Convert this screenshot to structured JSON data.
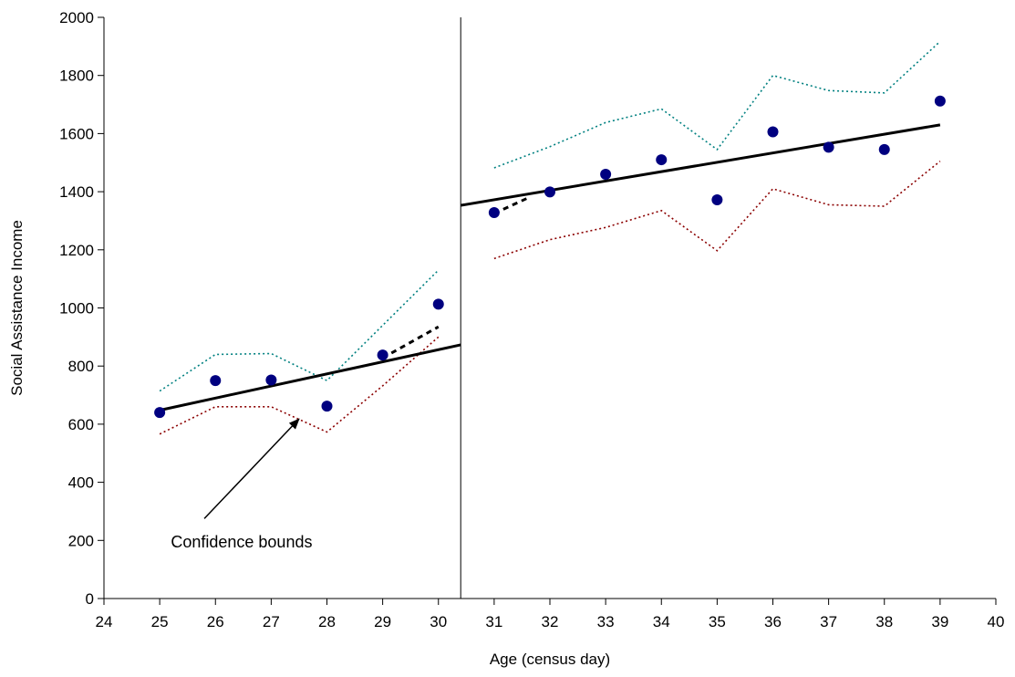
{
  "chart_data": {
    "type": "scatter",
    "xlabel": "Age (census day)",
    "ylabel": "Social Assistance Income",
    "xlim": [
      24,
      40
    ],
    "ylim": [
      0,
      2000
    ],
    "xticks": [
      24,
      25,
      26,
      27,
      28,
      29,
      30,
      31,
      32,
      33,
      34,
      35,
      36,
      37,
      38,
      39,
      40
    ],
    "yticks": [
      0,
      200,
      400,
      600,
      800,
      1000,
      1200,
      1400,
      1600,
      1800,
      2000
    ],
    "grid": false,
    "cutoff_x": 30.4,
    "points": {
      "color": "#000080",
      "x": [
        25,
        26,
        27,
        28,
        29,
        30,
        31,
        32,
        33,
        34,
        35,
        36,
        37,
        38,
        39
      ],
      "y": [
        640,
        750,
        752,
        662,
        838,
        1013,
        1328,
        1399,
        1460,
        1510,
        1372,
        1606,
        1553,
        1545,
        1712
      ]
    },
    "fit_left": {
      "x": [
        25,
        30.4
      ],
      "y": [
        648,
        873
      ]
    },
    "fit_right": {
      "x": [
        30.4,
        39
      ],
      "y": [
        1353,
        1630
      ]
    },
    "dashed_left": {
      "x": [
        29,
        30
      ],
      "y": [
        828,
        935
      ]
    },
    "dashed_right": {
      "x": [
        31,
        31.6
      ],
      "y": [
        1325,
        1378
      ]
    },
    "upper_bound": {
      "color": "#008080",
      "segments": [
        {
          "x": [
            25,
            26,
            27,
            28,
            29,
            30
          ],
          "y": [
            714,
            840,
            843,
            750,
            940,
            1130
          ]
        },
        {
          "x": [
            31,
            32,
            33,
            34,
            35,
            36,
            37,
            38,
            39
          ],
          "y": [
            1482,
            1555,
            1638,
            1685,
            1545,
            1800,
            1748,
            1740,
            1917
          ]
        }
      ]
    },
    "lower_bound": {
      "color": "#8B0000",
      "segments": [
        {
          "x": [
            25,
            26,
            27,
            28,
            29,
            30
          ],
          "y": [
            566,
            660,
            660,
            573,
            732,
            900
          ]
        },
        {
          "x": [
            31,
            32,
            33,
            34,
            35,
            36,
            37,
            38,
            39
          ],
          "y": [
            1170,
            1235,
            1277,
            1335,
            1197,
            1410,
            1355,
            1350,
            1505
          ]
        }
      ]
    },
    "annotation": {
      "text": "Confidence bounds",
      "text_x": 25.2,
      "text_y": 195,
      "arrow_from": [
        25.8,
        275
      ],
      "arrow_to": [
        27.5,
        618
      ]
    }
  }
}
